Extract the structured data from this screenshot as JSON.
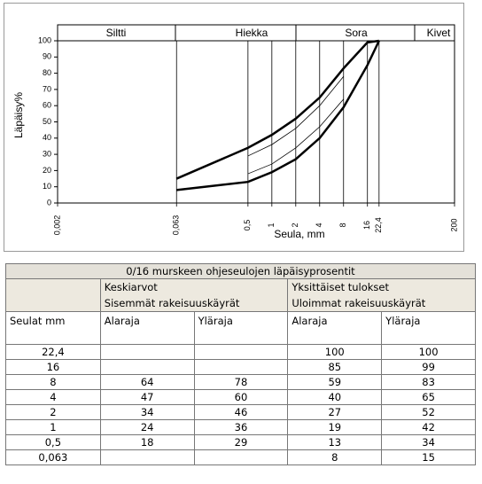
{
  "chart_data": {
    "type": "line",
    "bands": [
      "Siltti",
      "Hiekka",
      "Sora",
      "Kivet"
    ],
    "y_label": "Läpäisy%",
    "x_label": "Seula, mm",
    "x_log": true,
    "xlim": [
      0.002,
      200
    ],
    "ylim": [
      0,
      100
    ],
    "xticks": [
      {
        "value": 0.002,
        "label": "0,002"
      },
      {
        "value": 0.063,
        "label": "0,063"
      },
      {
        "value": 0.5,
        "label": "0,5"
      },
      1,
      2,
      4,
      8,
      16,
      {
        "value": 22.4,
        "label": "22,4"
      },
      200
    ],
    "yticks": [
      0,
      10,
      20,
      30,
      40,
      50,
      60,
      70,
      80,
      90,
      100
    ],
    "series": [
      {
        "color": "#000000",
        "width": 2.5,
        "x": [
          0.063,
          0.5,
          1,
          2,
          4,
          8,
          16,
          22.4
        ],
        "values": [
          8,
          13,
          19,
          27,
          40,
          59,
          85,
          100
        ]
      },
      {
        "color": "#000000",
        "width": 2.5,
        "x": [
          0.063,
          0.5,
          1,
          2,
          4,
          8,
          16,
          22.4
        ],
        "values": [
          15,
          34,
          42,
          52,
          65,
          83,
          99,
          100
        ]
      },
      {
        "color": "#000000",
        "width": 0.8,
        "x": [
          0.5,
          1,
          2,
          4,
          8
        ],
        "values": [
          18,
          24,
          34,
          47,
          64
        ]
      },
      {
        "color": "#000000",
        "width": 0.8,
        "x": [
          0.5,
          1,
          2,
          4,
          8
        ],
        "values": [
          29,
          36,
          46,
          60,
          78
        ]
      }
    ]
  },
  "table": {
    "title": "0/16 murskeen ohjeseulojen läpäisyprosentit",
    "groups": [
      [
        "Keskiarvot",
        "Sisemmät rakeisuuskäyrät"
      ],
      [
        "Yksittäiset tulokset",
        "Uloimmat rakeisuuskäyrät"
      ]
    ],
    "columns": [
      "Seulat mm",
      "Alaraja",
      "Yläraja",
      "Alaraja",
      "Yläraja"
    ],
    "rows": [
      [
        "22,4",
        null,
        null,
        "100",
        "100"
      ],
      [
        "16",
        null,
        null,
        "85",
        "99"
      ],
      [
        "8",
        "64",
        "78",
        "59",
        "83"
      ],
      [
        "4",
        "47",
        "60",
        "40",
        "65"
      ],
      [
        "2",
        "34",
        "46",
        "27",
        "52"
      ],
      [
        "1",
        "24",
        "36",
        "19",
        "42"
      ],
      [
        "0,5",
        "18",
        "29",
        "13",
        "34"
      ],
      [
        "0,063",
        null,
        null,
        "8",
        "15"
      ]
    ]
  }
}
